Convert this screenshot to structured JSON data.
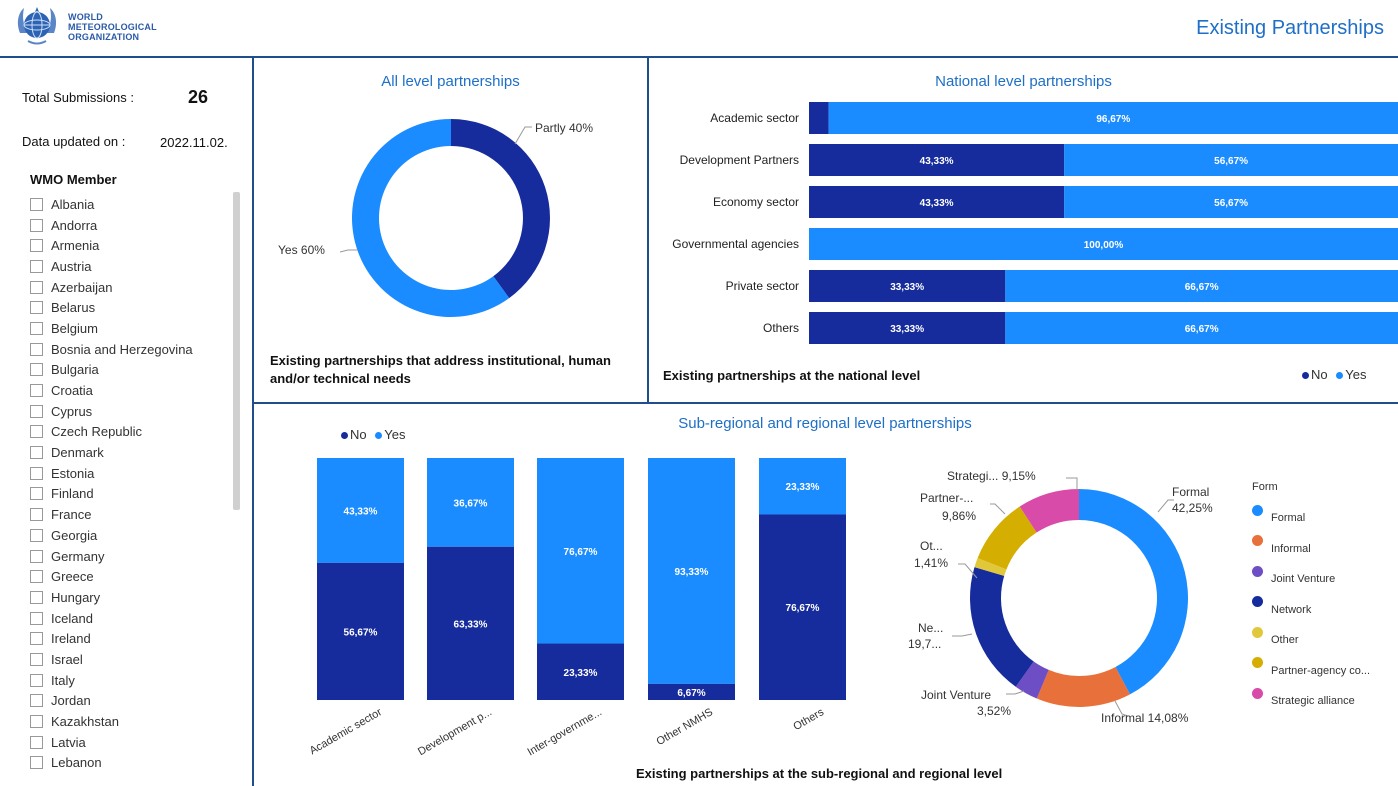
{
  "header": {
    "org_name": [
      "WORLD",
      "METEOROLOGICAL",
      "ORGANIZATION"
    ],
    "title": "Existing Partnerships",
    "logo_icon": "wmo-emblem-icon"
  },
  "sidebar": {
    "total_label": "Total Submissions :",
    "total_value": "26",
    "updated_label": "Data updated on :",
    "updated_value": "2022.11.02.",
    "slicer_title": "WMO Member",
    "members": [
      "Albania",
      "Andorra",
      "Armenia",
      "Austria",
      "Azerbaijan",
      "Belarus",
      "Belgium",
      "Bosnia and Herzegovina",
      "Bulgaria",
      "Croatia",
      "Cyprus",
      "Czech Republic",
      "Denmark",
      "Estonia",
      "Finland",
      "France",
      "Georgia",
      "Germany",
      "Greece",
      "Hungary",
      "Iceland",
      "Ireland",
      "Israel",
      "Italy",
      "Jordan",
      "Kazakhstan",
      "Latvia",
      "Lebanon"
    ]
  },
  "colors": {
    "no": "#162c9c",
    "yes": "#1a8cff",
    "border": "#1f4e8c",
    "title": "#1e6fc7",
    "formal": "#1a8cff",
    "informal": "#e8703a",
    "joint_venture": "#6e4ec4",
    "network": "#162c9c",
    "other": "#e1c83a",
    "partner_agency": "#d4ae00",
    "strategic_alliance": "#d84ba8"
  },
  "legend": {
    "no": "No",
    "yes": "Yes"
  },
  "chart_data": [
    {
      "type": "pie",
      "style": "donut",
      "title": "All level partnerships",
      "caption": "Existing partnerships that address institutional, human and/or technical needs",
      "slices": [
        {
          "label": "Partly",
          "value": 40,
          "display": "Partly 40%"
        },
        {
          "label": "Yes",
          "value": 60,
          "display": "Yes 60%"
        }
      ]
    },
    {
      "type": "bar",
      "orientation": "horizontal",
      "stacked": "100%",
      "title": "National level partnerships",
      "caption": "Existing partnerships at the national level",
      "legend_position": "bottom-right",
      "categories": [
        "Academic sector",
        "Development Partners",
        "Economy sector",
        "Governmental agencies",
        "Private sector",
        "Others"
      ],
      "series": [
        {
          "name": "No",
          "values": [
            3.33,
            43.33,
            43.33,
            0,
            33.33,
            33.33
          ],
          "labels": [
            "",
            "43,33%",
            "43,33%",
            "",
            "33,33%",
            "33,33%"
          ]
        },
        {
          "name": "Yes",
          "values": [
            96.67,
            56.67,
            56.67,
            100,
            66.67,
            66.67
          ],
          "labels": [
            "96,67%",
            "56,67%",
            "56,67%",
            "100,00%",
            "66,67%",
            "66,67%"
          ]
        }
      ]
    },
    {
      "type": "bar",
      "orientation": "vertical",
      "stacked": "100%",
      "title": "Sub-regional and regional level partnerships",
      "caption": "Existing partnerships at the sub-regional and regional level",
      "legend_position": "top-left",
      "categories": [
        "Academic sector",
        "Development p...",
        "Inter-governme...",
        "Other NMHS",
        "Others"
      ],
      "series": [
        {
          "name": "No",
          "values": [
            56.67,
            63.33,
            23.33,
            6.67,
            76.67
          ],
          "labels": [
            "56,67%",
            "63,33%",
            "23,33%",
            "6,67%",
            "76,67%"
          ]
        },
        {
          "name": "Yes",
          "values": [
            43.33,
            36.67,
            76.67,
            93.33,
            23.33
          ],
          "labels": [
            "43,33%",
            "36,67%",
            "76,67%",
            "93,33%",
            "23,33%"
          ]
        }
      ]
    },
    {
      "type": "pie",
      "style": "donut",
      "legend_title": "Form",
      "legend_position": "right",
      "slices": [
        {
          "label": "Formal",
          "value": 42.25,
          "display": [
            "Formal",
            "42,25%"
          ],
          "legend": "Formal"
        },
        {
          "label": "Informal",
          "value": 14.08,
          "display": [
            "Informal 14,08%"
          ],
          "legend": "Informal"
        },
        {
          "label": "Joint Venture",
          "value": 3.52,
          "display": [
            "Joint Venture",
            "3,52%"
          ],
          "legend": "Joint Venture"
        },
        {
          "label": "Network",
          "value": 19.72,
          "display": [
            "Ne...",
            "19,7..."
          ],
          "legend": "Network"
        },
        {
          "label": "Other",
          "value": 1.41,
          "display": [
            "Ot...",
            "1,41%"
          ],
          "legend": "Other"
        },
        {
          "label": "Partner-agency co...",
          "value": 9.86,
          "display": [
            "Partner-...",
            "9,86%"
          ],
          "legend": "Partner-agency co..."
        },
        {
          "label": "Strategic alliance",
          "value": 9.15,
          "display": [
            "Strategi... 9,15%"
          ],
          "legend": "Strategic alliance"
        }
      ]
    }
  ]
}
